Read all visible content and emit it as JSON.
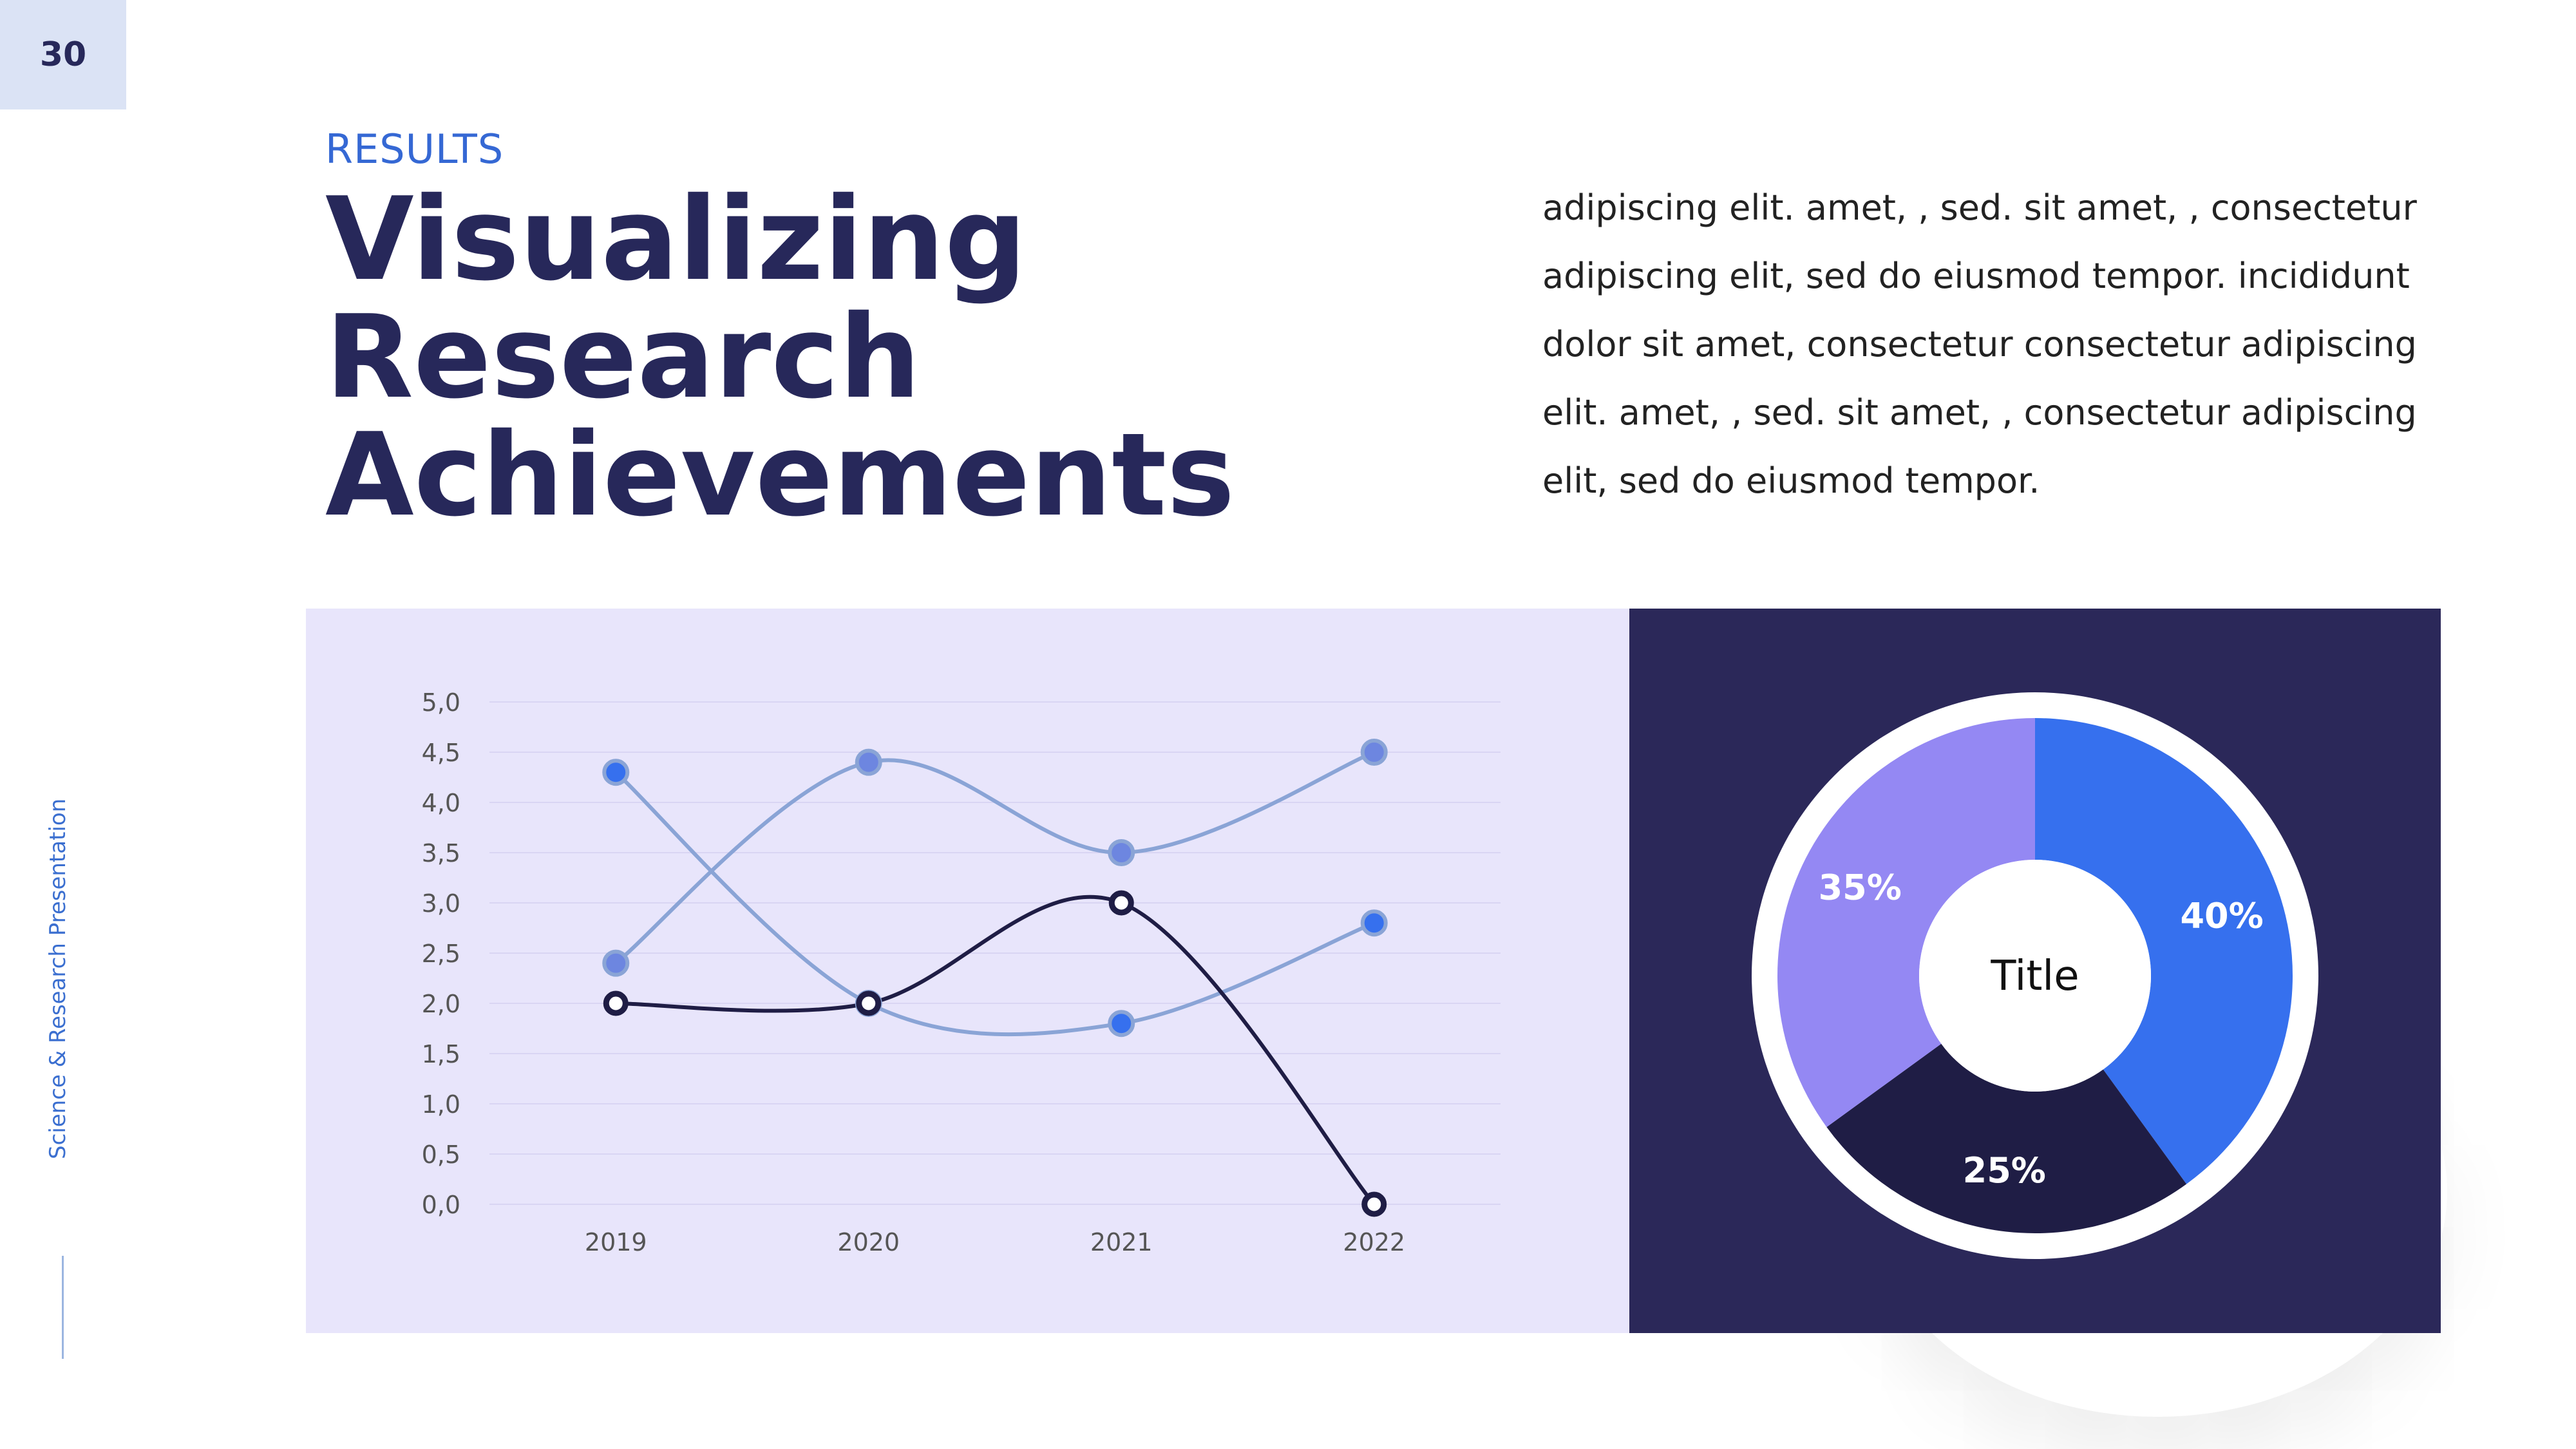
{
  "page_number": "30",
  "sidebar": {
    "text": "Science & Research Presentation"
  },
  "header": {
    "kicker": "RESULTS",
    "title": "Visualizing Research Achievements"
  },
  "body": {
    "text": "adipiscing elit. amet, , sed. sit amet, , consectetur adipiscing elit, sed do eiusmod tempor. incididunt dolor sit amet, consectetur consectetur adipiscing elit. amet, , sed. sit amet, , consectetur adipiscing elit, sed do eiusmod tempor."
  },
  "colors": {
    "navy": "#27285a",
    "blue": "#3670ee",
    "light_blue_line": "#8aa4d6",
    "purple": "#9488f3",
    "dark_slice": "#1f1d45",
    "panel_light": "#e8e5fb",
    "panel_dark": "#2b2859"
  },
  "chart_data": [
    {
      "type": "line",
      "x": [
        "2019",
        "2020",
        "2021",
        "2022"
      ],
      "ylim": [
        0,
        5
      ],
      "yticks": [
        "0,0",
        "0,5",
        "1,0",
        "1,5",
        "2,0",
        "2,5",
        "3,0",
        "3,5",
        "4,0",
        "4,5",
        "5,0"
      ],
      "grid": true,
      "series": [
        {
          "values": [
            4.3,
            2.0,
            1.8,
            2.8
          ],
          "color": "#8aa4d6",
          "marker": "#3670ee"
        },
        {
          "values": [
            2.4,
            4.4,
            3.5,
            4.5
          ],
          "color": "#8aa4d6",
          "marker": "#6d86e0"
        },
        {
          "values": [
            2.0,
            2.0,
            3.0,
            0.0
          ],
          "color": "#1f1d45",
          "marker": "#1f1d45"
        }
      ]
    },
    {
      "type": "pie",
      "center_label": "Title",
      "slices": [
        {
          "label": "40%",
          "value": 40,
          "color": "#3670ee"
        },
        {
          "label": "25%",
          "value": 25,
          "color": "#1f1d45"
        },
        {
          "label": "35%",
          "value": 35,
          "color": "#9488f3"
        }
      ]
    }
  ]
}
